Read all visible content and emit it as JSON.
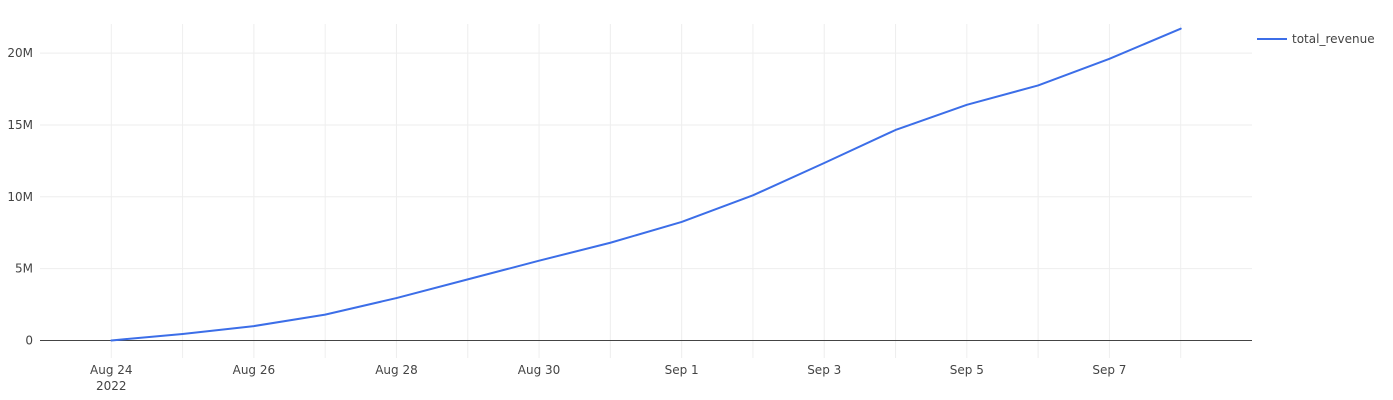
{
  "chart_data": {
    "type": "line",
    "title": "",
    "xlabel": "",
    "ylabel": "",
    "x": [
      "2022-08-24",
      "2022-08-25",
      "2022-08-26",
      "2022-08-27",
      "2022-08-28",
      "2022-08-29",
      "2022-08-30",
      "2022-08-31",
      "2022-09-01",
      "2022-09-02",
      "2022-09-03",
      "2022-09-04",
      "2022-09-05",
      "2022-09-06",
      "2022-09-07",
      "2022-09-08"
    ],
    "series": [
      {
        "name": "total_revenue",
        "color": "#3c6ee8",
        "values": [
          0,
          450000,
          1000000,
          1800000,
          2950000,
          4250000,
          5550000,
          6800000,
          8250000,
          10100000,
          12350000,
          14650000,
          16400000,
          17750000,
          19600000,
          21700000
        ]
      }
    ],
    "xlim": [
      "2022-08-23",
      "2022-09-09"
    ],
    "ylim": [
      -1500000,
      23000000
    ],
    "x_ticks": [
      {
        "date": "2022-08-24",
        "label": "Aug 24",
        "sublabel": "2022"
      },
      {
        "date": "2022-08-26",
        "label": "Aug 26"
      },
      {
        "date": "2022-08-28",
        "label": "Aug 28"
      },
      {
        "date": "2022-08-30",
        "label": "Aug 30"
      },
      {
        "date": "2022-09-01",
        "label": "Sep 1"
      },
      {
        "date": "2022-09-03",
        "label": "Sep 3"
      },
      {
        "date": "2022-09-05",
        "label": "Sep 5"
      },
      {
        "date": "2022-09-07",
        "label": "Sep 7"
      }
    ],
    "y_ticks": [
      {
        "value": 0,
        "label": "0"
      },
      {
        "value": 5000000,
        "label": "5M"
      },
      {
        "value": 10000000,
        "label": "10M"
      },
      {
        "value": 15000000,
        "label": "15M"
      },
      {
        "value": 20000000,
        "label": "20M"
      }
    ],
    "grid": true,
    "legend": {
      "position": "top-right"
    },
    "colors": {
      "zero_line": "#444444",
      "grid": "#eeeeee"
    }
  }
}
